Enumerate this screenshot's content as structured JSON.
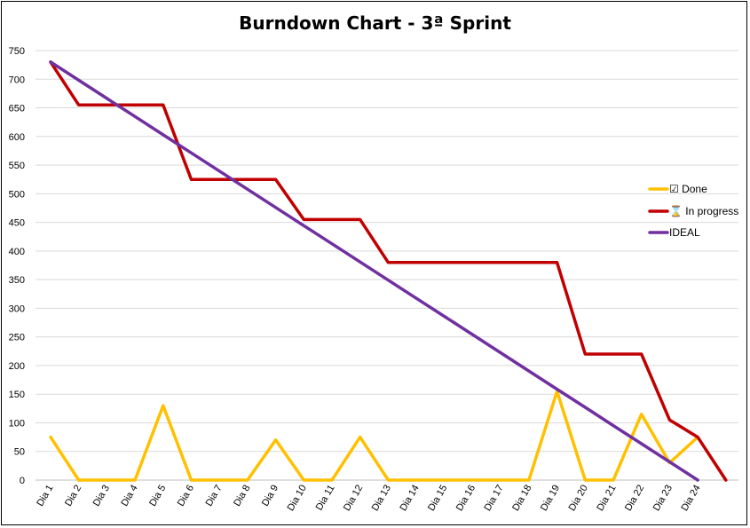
{
  "chart_data": {
    "type": "line",
    "title": "Burndown Chart - 3ª Sprint",
    "xlabel": "",
    "ylabel": "",
    "ylim": [
      0,
      750
    ],
    "ytick_step": 50,
    "grid": true,
    "legend_position": "right",
    "categories": [
      "Dia 1",
      "Dia 2",
      "Dia 3",
      "Dia 4",
      "Dia 5",
      "Dia 6",
      "Dia 7",
      "Dia 8",
      "Dia 9",
      "Dia 10",
      "Dia 11",
      "Dia 12",
      "Dia 13",
      "Dia 14",
      "Dia 15",
      "Dia 16",
      "Dia 17",
      "Dia 18",
      "Dia 19",
      "Dia 20",
      "Dia 21",
      "Dia 22",
      "Dia 23",
      "Dia 24",
      ""
    ],
    "series": [
      {
        "name": "Done",
        "legend_label": "☑ Done",
        "color": "#ffc000",
        "values": [
          75,
          0,
          0,
          0,
          130,
          0,
          0,
          0,
          70,
          0,
          0,
          75,
          0,
          0,
          0,
          0,
          0,
          0,
          155,
          0,
          0,
          115,
          30,
          75,
          null
        ]
      },
      {
        "name": "In progress",
        "legend_label": "⌛ In progress",
        "color": "#c00000",
        "values": [
          730,
          655,
          655,
          655,
          655,
          525,
          525,
          525,
          525,
          455,
          455,
          455,
          380,
          380,
          380,
          380,
          380,
          380,
          380,
          220,
          220,
          220,
          105,
          75,
          0
        ]
      },
      {
        "name": "IDEAL",
        "legend_label": "IDEAL",
        "color": "#7030a0",
        "values": [
          730,
          698.3,
          666.5,
          634.8,
          603,
          571.3,
          539.6,
          507.8,
          476.1,
          444.3,
          412.6,
          380.9,
          349.1,
          317.4,
          285.7,
          253.9,
          222.2,
          190.4,
          158.7,
          127,
          95.2,
          63.5,
          31.7,
          0,
          null
        ]
      }
    ]
  }
}
